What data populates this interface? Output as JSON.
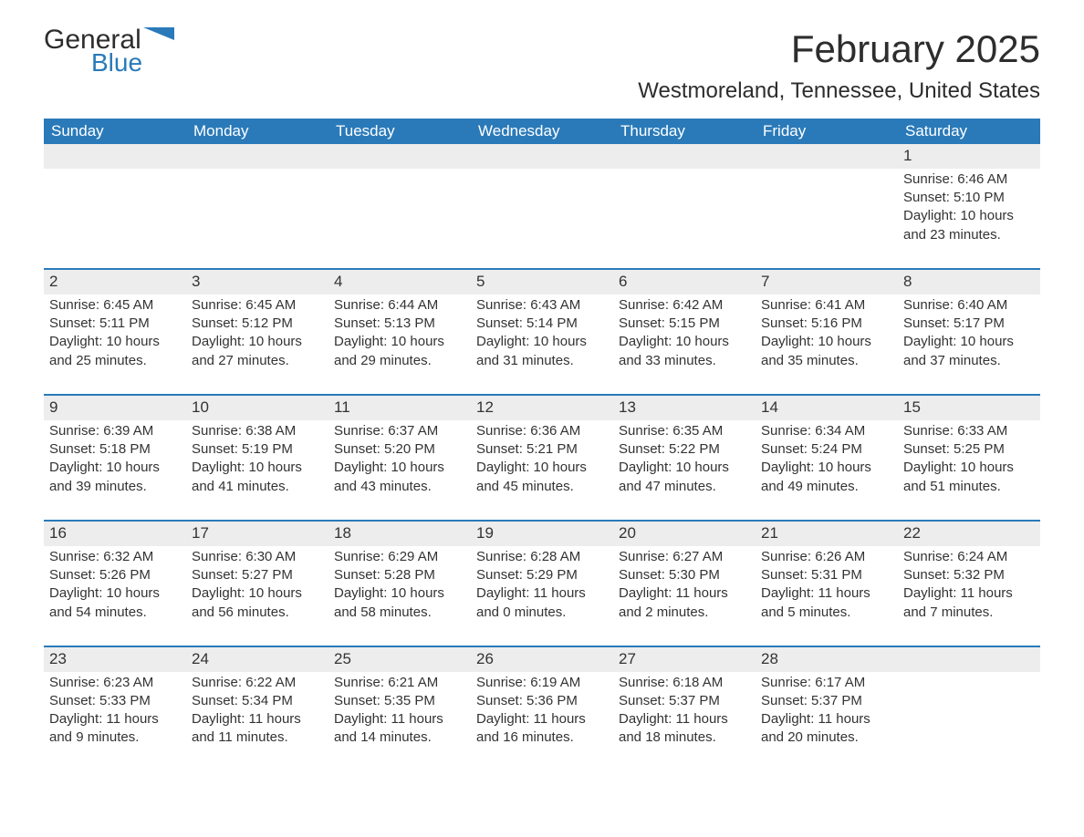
{
  "logo": {
    "word1": "General",
    "word2": "Blue",
    "brand_color": "#2a7ab9"
  },
  "title": "February 2025",
  "location": "Westmoreland, Tennessee, United States",
  "colors": {
    "header_bg": "#2a7ab9",
    "header_text": "#ffffff",
    "daynum_bg": "#ededed",
    "row_border": "#2a7ab9",
    "body_text": "#333333",
    "page_bg": "#ffffff"
  },
  "day_headers": [
    "Sunday",
    "Monday",
    "Tuesday",
    "Wednesday",
    "Thursday",
    "Friday",
    "Saturday"
  ],
  "weeks": [
    [
      null,
      null,
      null,
      null,
      null,
      null,
      {
        "n": "1",
        "sunrise": "Sunrise: 6:46 AM",
        "sunset": "Sunset: 5:10 PM",
        "daylight": "Daylight: 10 hours and 23 minutes."
      }
    ],
    [
      {
        "n": "2",
        "sunrise": "Sunrise: 6:45 AM",
        "sunset": "Sunset: 5:11 PM",
        "daylight": "Daylight: 10 hours and 25 minutes."
      },
      {
        "n": "3",
        "sunrise": "Sunrise: 6:45 AM",
        "sunset": "Sunset: 5:12 PM",
        "daylight": "Daylight: 10 hours and 27 minutes."
      },
      {
        "n": "4",
        "sunrise": "Sunrise: 6:44 AM",
        "sunset": "Sunset: 5:13 PM",
        "daylight": "Daylight: 10 hours and 29 minutes."
      },
      {
        "n": "5",
        "sunrise": "Sunrise: 6:43 AM",
        "sunset": "Sunset: 5:14 PM",
        "daylight": "Daylight: 10 hours and 31 minutes."
      },
      {
        "n": "6",
        "sunrise": "Sunrise: 6:42 AM",
        "sunset": "Sunset: 5:15 PM",
        "daylight": "Daylight: 10 hours and 33 minutes."
      },
      {
        "n": "7",
        "sunrise": "Sunrise: 6:41 AM",
        "sunset": "Sunset: 5:16 PM",
        "daylight": "Daylight: 10 hours and 35 minutes."
      },
      {
        "n": "8",
        "sunrise": "Sunrise: 6:40 AM",
        "sunset": "Sunset: 5:17 PM",
        "daylight": "Daylight: 10 hours and 37 minutes."
      }
    ],
    [
      {
        "n": "9",
        "sunrise": "Sunrise: 6:39 AM",
        "sunset": "Sunset: 5:18 PM",
        "daylight": "Daylight: 10 hours and 39 minutes."
      },
      {
        "n": "10",
        "sunrise": "Sunrise: 6:38 AM",
        "sunset": "Sunset: 5:19 PM",
        "daylight": "Daylight: 10 hours and 41 minutes."
      },
      {
        "n": "11",
        "sunrise": "Sunrise: 6:37 AM",
        "sunset": "Sunset: 5:20 PM",
        "daylight": "Daylight: 10 hours and 43 minutes."
      },
      {
        "n": "12",
        "sunrise": "Sunrise: 6:36 AM",
        "sunset": "Sunset: 5:21 PM",
        "daylight": "Daylight: 10 hours and 45 minutes."
      },
      {
        "n": "13",
        "sunrise": "Sunrise: 6:35 AM",
        "sunset": "Sunset: 5:22 PM",
        "daylight": "Daylight: 10 hours and 47 minutes."
      },
      {
        "n": "14",
        "sunrise": "Sunrise: 6:34 AM",
        "sunset": "Sunset: 5:24 PM",
        "daylight": "Daylight: 10 hours and 49 minutes."
      },
      {
        "n": "15",
        "sunrise": "Sunrise: 6:33 AM",
        "sunset": "Sunset: 5:25 PM",
        "daylight": "Daylight: 10 hours and 51 minutes."
      }
    ],
    [
      {
        "n": "16",
        "sunrise": "Sunrise: 6:32 AM",
        "sunset": "Sunset: 5:26 PM",
        "daylight": "Daylight: 10 hours and 54 minutes."
      },
      {
        "n": "17",
        "sunrise": "Sunrise: 6:30 AM",
        "sunset": "Sunset: 5:27 PM",
        "daylight": "Daylight: 10 hours and 56 minutes."
      },
      {
        "n": "18",
        "sunrise": "Sunrise: 6:29 AM",
        "sunset": "Sunset: 5:28 PM",
        "daylight": "Daylight: 10 hours and 58 minutes."
      },
      {
        "n": "19",
        "sunrise": "Sunrise: 6:28 AM",
        "sunset": "Sunset: 5:29 PM",
        "daylight": "Daylight: 11 hours and 0 minutes."
      },
      {
        "n": "20",
        "sunrise": "Sunrise: 6:27 AM",
        "sunset": "Sunset: 5:30 PM",
        "daylight": "Daylight: 11 hours and 2 minutes."
      },
      {
        "n": "21",
        "sunrise": "Sunrise: 6:26 AM",
        "sunset": "Sunset: 5:31 PM",
        "daylight": "Daylight: 11 hours and 5 minutes."
      },
      {
        "n": "22",
        "sunrise": "Sunrise: 6:24 AM",
        "sunset": "Sunset: 5:32 PM",
        "daylight": "Daylight: 11 hours and 7 minutes."
      }
    ],
    [
      {
        "n": "23",
        "sunrise": "Sunrise: 6:23 AM",
        "sunset": "Sunset: 5:33 PM",
        "daylight": "Daylight: 11 hours and 9 minutes."
      },
      {
        "n": "24",
        "sunrise": "Sunrise: 6:22 AM",
        "sunset": "Sunset: 5:34 PM",
        "daylight": "Daylight: 11 hours and 11 minutes."
      },
      {
        "n": "25",
        "sunrise": "Sunrise: 6:21 AM",
        "sunset": "Sunset: 5:35 PM",
        "daylight": "Daylight: 11 hours and 14 minutes."
      },
      {
        "n": "26",
        "sunrise": "Sunrise: 6:19 AM",
        "sunset": "Sunset: 5:36 PM",
        "daylight": "Daylight: 11 hours and 16 minutes."
      },
      {
        "n": "27",
        "sunrise": "Sunrise: 6:18 AM",
        "sunset": "Sunset: 5:37 PM",
        "daylight": "Daylight: 11 hours and 18 minutes."
      },
      {
        "n": "28",
        "sunrise": "Sunrise: 6:17 AM",
        "sunset": "Sunset: 5:37 PM",
        "daylight": "Daylight: 11 hours and 20 minutes."
      },
      null
    ]
  ]
}
